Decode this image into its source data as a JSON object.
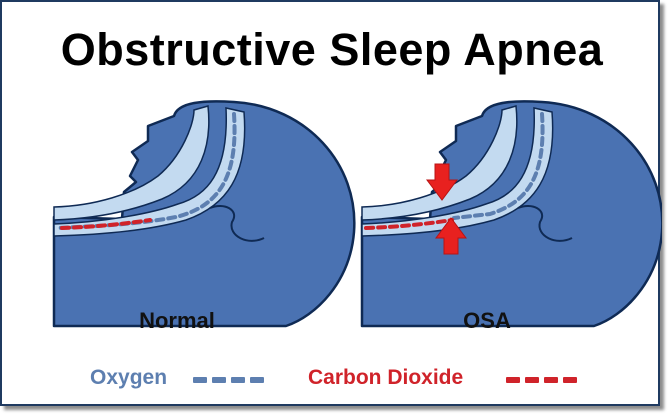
{
  "title": "Obstructive Sleep Apnea",
  "panels": [
    {
      "label": "Normal",
      "airway": "open"
    },
    {
      "label": "OSA",
      "airway": "obstructed"
    }
  ],
  "legend": [
    {
      "label": "Oxygen",
      "color": "#5d7fb0",
      "line": "dashed"
    },
    {
      "label": "Carbon Dioxide",
      "color": "#d0232a",
      "line": "dashed"
    }
  ],
  "colors": {
    "head_fill": "#4a72b2",
    "head_outline": "#0f2a54",
    "airway_fill": "#c3daf0",
    "oxygen": "#5d7fb0",
    "carbon_dioxide": "#d0232a",
    "obstruction_arrow": "#e8211f",
    "border": "#1f3a60"
  }
}
